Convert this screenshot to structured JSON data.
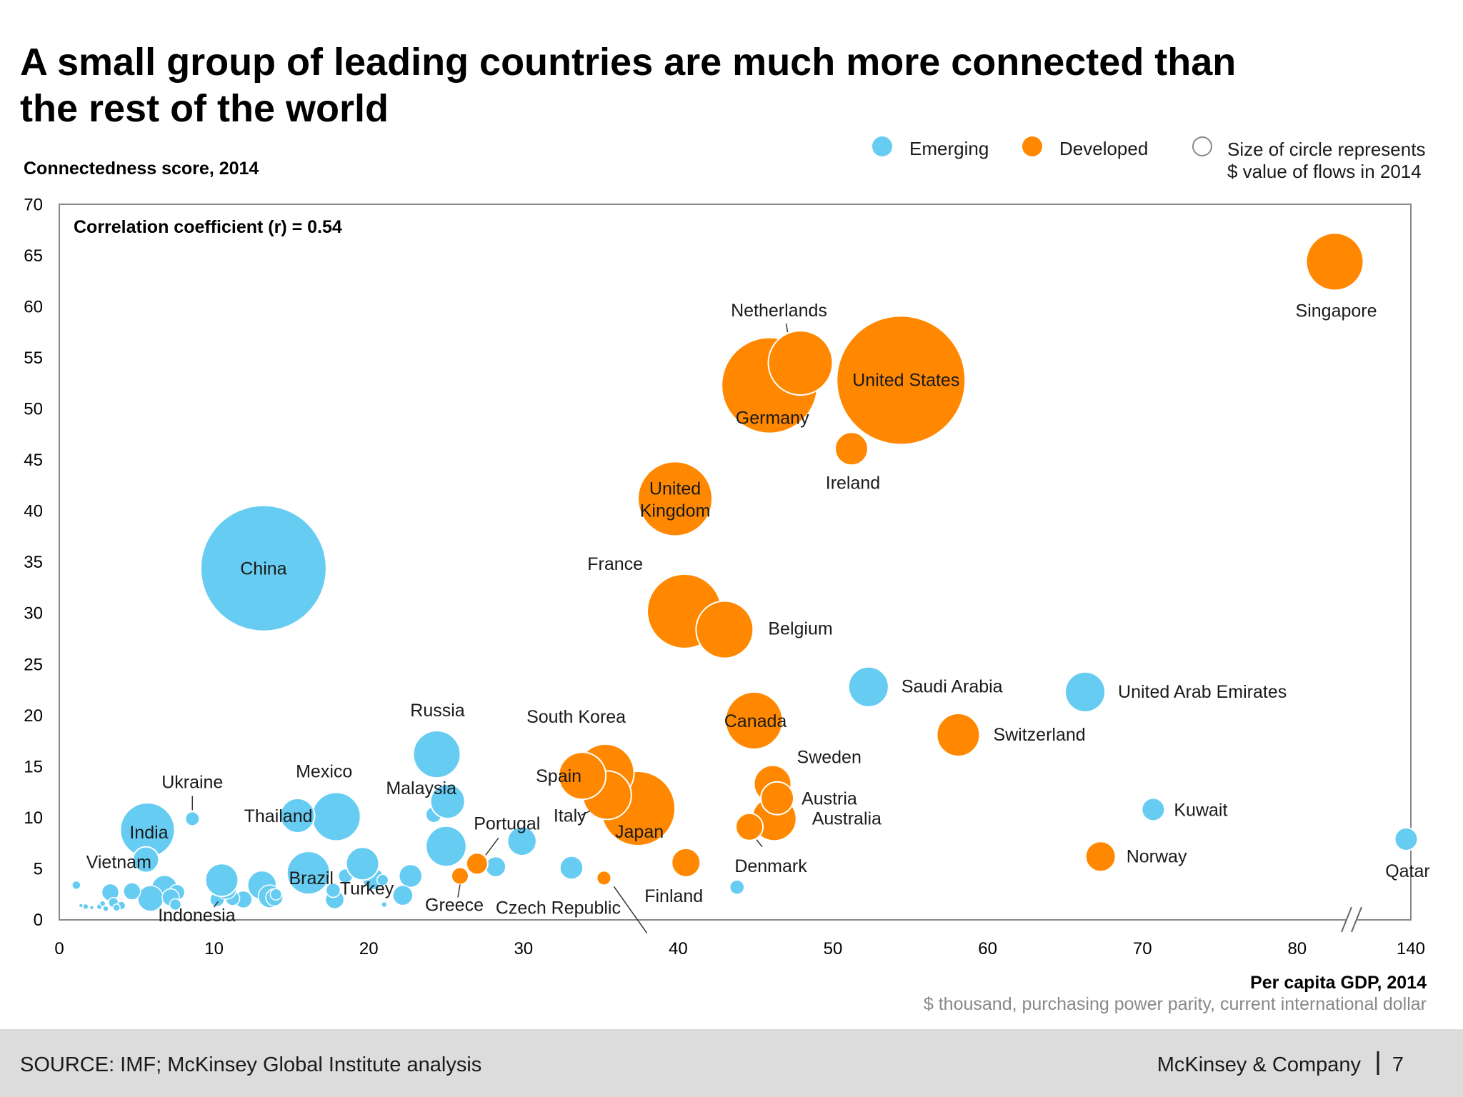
{
  "header": {
    "title_line1": "A small group of leading countries are much more connected than",
    "title_line2": "the rest of the world"
  },
  "legend": {
    "emerging_label": "Emerging",
    "developed_label": "Developed",
    "size_note_line1": "Size of circle represents",
    "size_note_line2": "$ value of flows in 2014"
  },
  "colors": {
    "emerging": "#66CCF2",
    "developed": "#FF8800"
  },
  "footer": {
    "source": "SOURCE: IMF; McKinsey Global Institute analysis",
    "company": "McKinsey & Company",
    "page_number": "7"
  },
  "chart_data": {
    "type": "scatter",
    "subtype": "bubble",
    "ylabel": "Connectedness score, 2014",
    "xlabel": "Per capita GDP, 2014",
    "xlabel_sub": "$ thousand, purchasing power parity, current international dollar",
    "annotation": "Correlation coefficient (r) = 0.54",
    "xlim": [
      0,
      140
    ],
    "ylim": [
      0,
      70
    ],
    "x_axis_break": "between 80 and 140",
    "x_ticks": [
      "0",
      "10",
      "20",
      "30",
      "40",
      "50",
      "60",
      "70",
      "80",
      "140"
    ],
    "y_ticks": [
      "0",
      "5",
      "10",
      "15",
      "20",
      "25",
      "30",
      "35",
      "40",
      "45",
      "50",
      "55",
      "60",
      "65",
      "70"
    ],
    "grid": false,
    "legend_position": "top-right",
    "series": [
      {
        "name": "Emerging",
        "points": [
          {
            "label": "China",
            "x": 13.2,
            "y": 34.4,
            "size": 88
          },
          {
            "label": "India",
            "x": 5.7,
            "y": 8.8,
            "size": 38
          },
          {
            "label": "Russia",
            "x": 24.4,
            "y": 16.2,
            "size": 33
          },
          {
            "label": "Mexico",
            "x": 17.9,
            "y": 10.1,
            "size": 34
          },
          {
            "label": "Thailand",
            "x": 15.4,
            "y": 10.2,
            "size": 24
          },
          {
            "label": "Malaysia",
            "x": 25.1,
            "y": 11.6,
            "size": 24
          },
          {
            "label": "Turkey",
            "x": 19.6,
            "y": 5.5,
            "size": 23
          },
          {
            "label": "Brazil",
            "x": 16.1,
            "y": 4.6,
            "size": 30
          },
          {
            "label": "Ukraine",
            "x": 8.6,
            "y": 9.9,
            "size": 10
          },
          {
            "label": "Vietnam",
            "x": 5.6,
            "y": 5.9,
            "size": 18
          },
          {
            "label": "Indonesia",
            "x": 10.5,
            "y": 3.9,
            "size": 23
          },
          {
            "label": "Saudi Arabia",
            "x": 52.3,
            "y": 22.8,
            "size": 28
          },
          {
            "label": "United Arab Emirates",
            "x": 66.3,
            "y": 22.3,
            "size": 28
          },
          {
            "label": "Kuwait",
            "x": 70.7,
            "y": 10.8,
            "size": 16
          },
          {
            "label": "Qatar",
            "x": 136.5,
            "y": 7.9,
            "size": 16
          }
        ]
      },
      {
        "name": "Developed",
        "points": [
          {
            "label": "Singapore",
            "x": 82.8,
            "y": 64.4,
            "size": 40
          },
          {
            "label": "United States",
            "x": 54.4,
            "y": 52.8,
            "size": 90
          },
          {
            "label": "Netherlands",
            "x": 47.9,
            "y": 54.5,
            "size": 45
          },
          {
            "label": "Germany",
            "x": 45.9,
            "y": 52.3,
            "size": 67
          },
          {
            "label": "Ireland",
            "x": 51.2,
            "y": 46.1,
            "size": 23
          },
          {
            "label": "United Kingdom",
            "x": 39.8,
            "y": 41.2,
            "size": 52
          },
          {
            "label": "France",
            "x": 40.4,
            "y": 30.2,
            "size": 52
          },
          {
            "label": "Belgium",
            "x": 43.0,
            "y": 28.4,
            "size": 40
          },
          {
            "label": "Canada",
            "x": 44.9,
            "y": 19.5,
            "size": 40
          },
          {
            "label": "Switzerland",
            "x": 58.1,
            "y": 18.1,
            "size": 30
          },
          {
            "label": "Sweden",
            "x": 46.1,
            "y": 13.3,
            "size": 26
          },
          {
            "label": "Austria",
            "x": 46.4,
            "y": 11.9,
            "size": 23
          },
          {
            "label": "Australia",
            "x": 46.2,
            "y": 9.9,
            "size": 31
          },
          {
            "label": "Denmark",
            "x": 44.6,
            "y": 9.1,
            "size": 19
          },
          {
            "label": "Norway",
            "x": 67.3,
            "y": 6.2,
            "size": 21
          },
          {
            "label": "Japan",
            "x": 37.4,
            "y": 10.9,
            "size": 52
          },
          {
            "label": "South Korea",
            "x": 35.3,
            "y": 14.4,
            "size": 40
          },
          {
            "label": "Spain",
            "x": 33.8,
            "y": 14.1,
            "size": 33
          },
          {
            "label": "Italy",
            "x": 35.4,
            "y": 12.2,
            "size": 34
          },
          {
            "label": "Finland",
            "x": 40.5,
            "y": 5.6,
            "size": 20
          },
          {
            "label": "Portugal",
            "x": 27.0,
            "y": 5.5,
            "size": 15
          },
          {
            "label": "Greece",
            "x": 25.9,
            "y": 4.3,
            "size": 12
          },
          {
            "label": "Czech Republic",
            "x": 35.2,
            "y": 4.1,
            "size": 10
          }
        ]
      }
    ],
    "unlabeled_emerging_points": [
      {
        "x": 29.9,
        "y": 7.7,
        "size": 20
      },
      {
        "x": 33.1,
        "y": 5.1,
        "size": 16
      },
      {
        "x": 28.2,
        "y": 5.2,
        "size": 14
      },
      {
        "x": 43.8,
        "y": 3.2,
        "size": 10
      },
      {
        "x": 24.2,
        "y": 10.3,
        "size": 11
      },
      {
        "x": 25.0,
        "y": 7.2,
        "size": 28
      },
      {
        "x": 22.7,
        "y": 4.3,
        "size": 16
      },
      {
        "x": 22.2,
        "y": 2.4,
        "size": 14
      },
      {
        "x": 20.3,
        "y": 4.0,
        "size": 15
      },
      {
        "x": 20.9,
        "y": 3.9,
        "size": 8
      },
      {
        "x": 18.5,
        "y": 4.3,
        "size": 10
      },
      {
        "x": 17.8,
        "y": 2.0,
        "size": 13
      },
      {
        "x": 17.7,
        "y": 2.9,
        "size": 10
      },
      {
        "x": 13.1,
        "y": 3.4,
        "size": 20
      },
      {
        "x": 13.6,
        "y": 2.3,
        "size": 16
      },
      {
        "x": 13.9,
        "y": 2.2,
        "size": 12
      },
      {
        "x": 14.0,
        "y": 2.5,
        "size": 8
      },
      {
        "x": 11.9,
        "y": 2.0,
        "size": 12
      },
      {
        "x": 11.2,
        "y": 2.1,
        "size": 10
      },
      {
        "x": 10.2,
        "y": 2.0,
        "size": 10
      },
      {
        "x": 10.8,
        "y": 3.0,
        "size": 14
      },
      {
        "x": 6.8,
        "y": 3.1,
        "size": 18
      },
      {
        "x": 5.9,
        "y": 2.1,
        "size": 18
      },
      {
        "x": 7.6,
        "y": 2.7,
        "size": 11
      },
      {
        "x": 7.2,
        "y": 2.2,
        "size": 12
      },
      {
        "x": 7.5,
        "y": 1.5,
        "size": 8
      },
      {
        "x": 4.7,
        "y": 2.8,
        "size": 12
      },
      {
        "x": 3.3,
        "y": 2.7,
        "size": 12
      },
      {
        "x": 3.5,
        "y": 1.7,
        "size": 7
      },
      {
        "x": 4.0,
        "y": 1.4,
        "size": 6
      },
      {
        "x": 3.7,
        "y": 1.2,
        "size": 5
      },
      {
        "x": 1.1,
        "y": 3.4,
        "size": 6
      },
      {
        "x": 1.7,
        "y": 1.3,
        "size": 4
      },
      {
        "x": 2.6,
        "y": 1.3,
        "size": 4
      },
      {
        "x": 2.8,
        "y": 1.6,
        "size": 4
      },
      {
        "x": 3.0,
        "y": 1.1,
        "size": 4
      },
      {
        "x": 2.1,
        "y": 1.2,
        "size": 3
      },
      {
        "x": 1.4,
        "y": 1.4,
        "size": 3
      },
      {
        "x": 21.0,
        "y": 1.5,
        "size": 4
      }
    ]
  }
}
